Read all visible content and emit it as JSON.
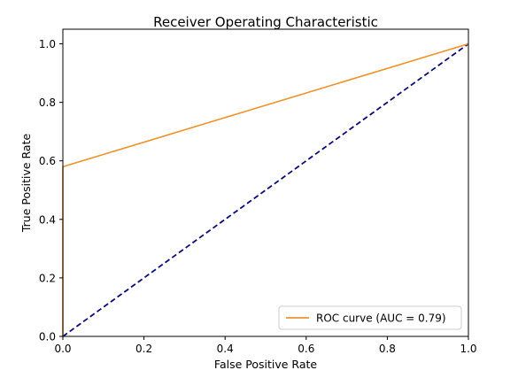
{
  "chart_data": {
    "type": "line",
    "title": "Receiver Operating Characteristic",
    "xlabel": "False Positive Rate",
    "ylabel": "True Positive Rate",
    "xlim": [
      0.0,
      1.0
    ],
    "ylim": [
      0.0,
      1.05
    ],
    "x_ticks": [
      "0.0",
      "0.2",
      "0.4",
      "0.6",
      "0.8",
      "1.0"
    ],
    "y_ticks": [
      "0.0",
      "0.2",
      "0.4",
      "0.6",
      "0.8",
      "1.0"
    ],
    "grid": false,
    "legend_position": "lower-right",
    "series": [
      {
        "name": "ROC curve (AUC = 0.79)",
        "color": "#f0922c",
        "style": "solid",
        "x": [
          0.0,
          0.0,
          1.0
        ],
        "y": [
          0.0,
          0.58,
          1.0
        ]
      },
      {
        "color": "#0b0b7a",
        "style": "dashed",
        "x": [
          0.0,
          1.0
        ],
        "y": [
          0.0,
          1.0
        ]
      }
    ]
  }
}
